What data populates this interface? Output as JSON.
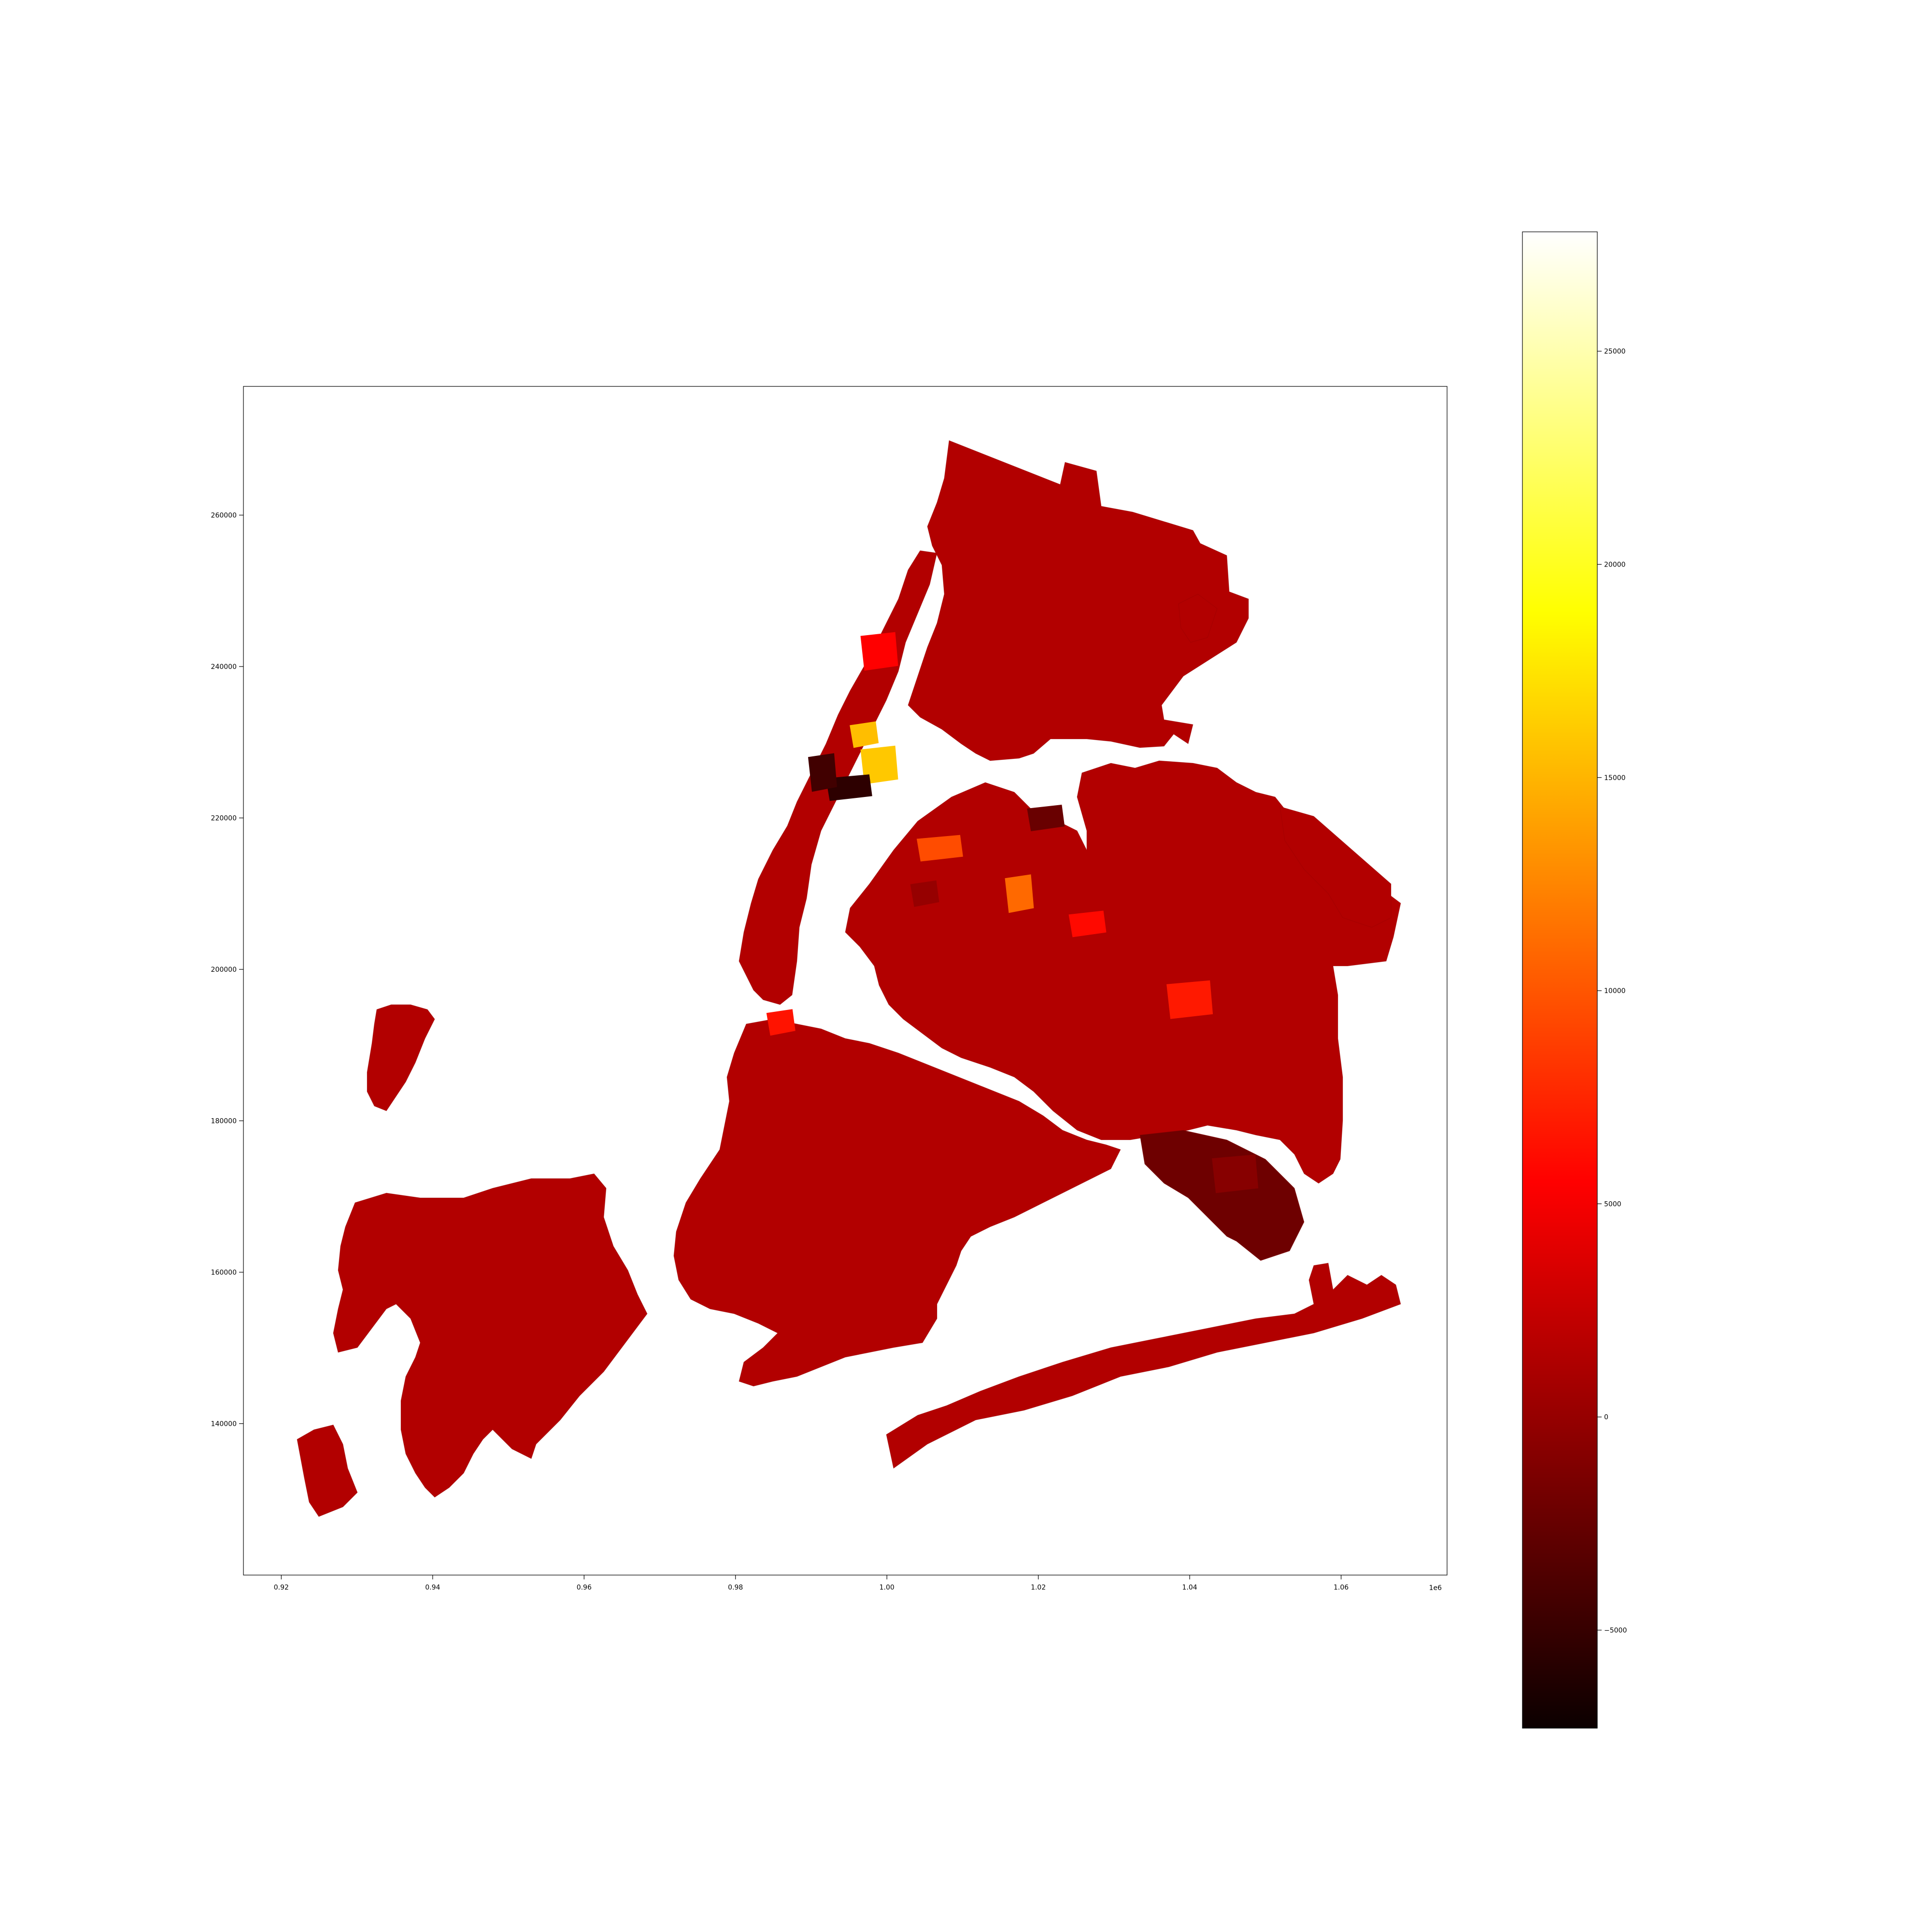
{
  "chart_data": {
    "type": "choropleth",
    "title": "",
    "xlabel": "",
    "ylabel": "",
    "x_offset_label": "1e6",
    "xlim": [
      0.915,
      1.074
    ],
    "ylim": [
      120000,
      277000
    ],
    "x_ticks": [
      0.92,
      0.94,
      0.96,
      0.98,
      1.0,
      1.02,
      1.04,
      1.06
    ],
    "x_tick_labels": [
      "0.92",
      "0.94",
      "0.96",
      "0.98",
      "1.00",
      "1.02",
      "1.04",
      "1.06"
    ],
    "y_ticks": [
      140000,
      160000,
      180000,
      200000,
      220000,
      240000,
      260000
    ],
    "y_tick_labels": [
      "140000",
      "160000",
      "180000",
      "200000",
      "220000",
      "240000",
      "260000"
    ],
    "colormap": "hot",
    "color_range": [
      -7300,
      27800
    ],
    "colorbar_ticks": [
      -5000,
      0,
      5000,
      10000,
      15000,
      20000,
      25000
    ],
    "colorbar_tick_labels": [
      "−5000",
      "0",
      "5000",
      "10000",
      "15000",
      "20000",
      "25000"
    ],
    "default_region_value": 200,
    "highlighted_regions": [
      {
        "value": 15500,
        "x": 0.997,
        "y": 231000
      },
      {
        "value": 16000,
        "x": 0.999,
        "y": 227000
      },
      {
        "value": 9500,
        "x": 1.007,
        "y": 216000
      },
      {
        "value": 11000,
        "x": 1.0175,
        "y": 210000
      },
      {
        "value": 6000,
        "x": 1.0265,
        "y": 206000
      },
      {
        "value": 6800,
        "x": 1.04,
        "y": 196000
      },
      {
        "value": 6500,
        "x": 0.986,
        "y": 193000
      },
      {
        "value": 4500,
        "x": 0.999,
        "y": 242000
      },
      {
        "value": -6500,
        "x": 0.995,
        "y": 224000
      },
      {
        "value": -5500,
        "x": 0.9915,
        "y": 226000
      },
      {
        "value": -3500,
        "x": 1.021,
        "y": 220000
      },
      {
        "value": -2000,
        "x": 1.046,
        "y": 173000
      },
      {
        "value": -1200,
        "x": 1.005,
        "y": 210000
      }
    ]
  }
}
